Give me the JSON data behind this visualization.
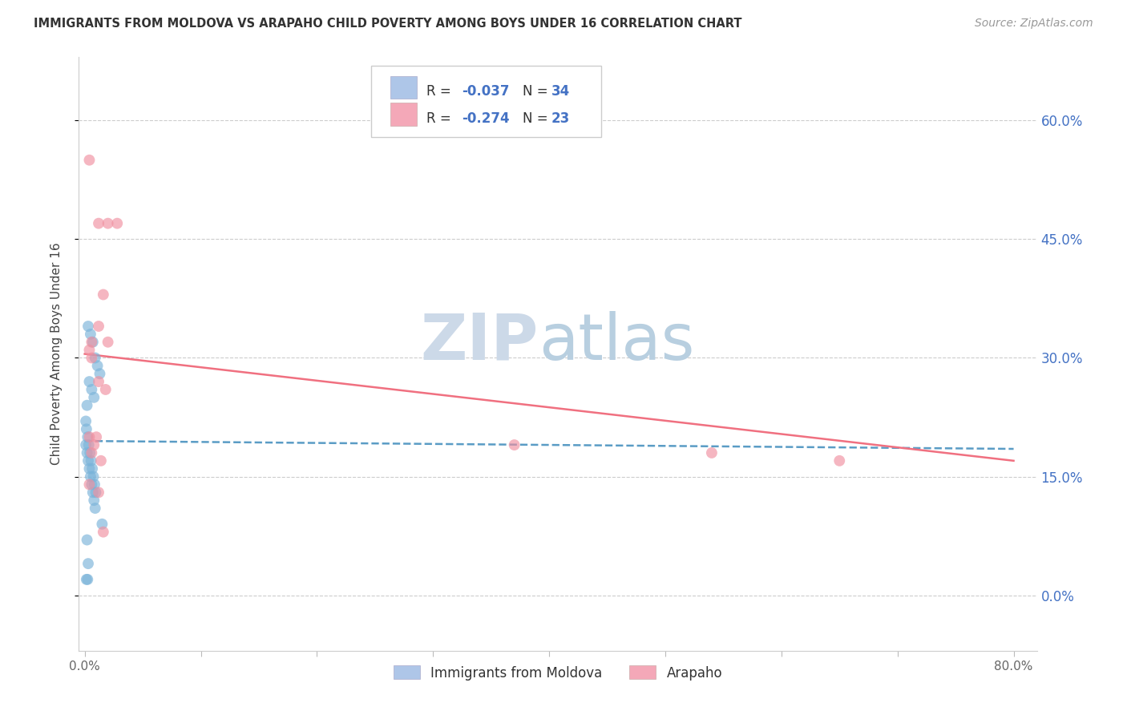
{
  "title": "IMMIGRANTS FROM MOLDOVA VS ARAPAHO CHILD POVERTY AMONG BOYS UNDER 16 CORRELATION CHART",
  "source": "Source: ZipAtlas.com",
  "ylabel": "Child Poverty Among Boys Under 16",
  "ytick_values": [
    0,
    15,
    30,
    45,
    60
  ],
  "ytick_labels": [
    "0.0%",
    "15.0%",
    "30.0%",
    "45.0%",
    "60.0%"
  ],
  "xlim": [
    0,
    80
  ],
  "ylim": [
    -7,
    68
  ],
  "moldova_color": "#7ab3d9",
  "arapaho_color": "#f090a0",
  "moldova_line_color": "#5a9cc5",
  "arapaho_line_color": "#f07080",
  "legend_box_color": "#aec6e8",
  "legend_pink_color": "#f4a8b8",
  "scatter_alpha": 0.65,
  "scatter_size": 100,
  "watermark_zip_color": "#ccd9e8",
  "watermark_atlas_color": "#b8cfe0",
  "moldova_scatter_x": [
    0.3,
    0.5,
    0.7,
    0.9,
    1.1,
    1.3,
    0.4,
    0.6,
    0.8,
    0.2,
    0.1,
    0.15,
    0.25,
    0.35,
    0.45,
    0.55,
    0.65,
    0.75,
    0.85,
    0.95,
    0.1,
    0.2,
    0.3,
    0.4,
    0.5,
    0.6,
    0.7,
    0.8,
    0.9,
    1.5,
    0.2,
    0.3,
    0.15,
    0.25
  ],
  "moldova_scatter_y": [
    34,
    33,
    32,
    30,
    29,
    28,
    27,
    26,
    25,
    24,
    22,
    21,
    20,
    19,
    18,
    17,
    16,
    15,
    14,
    13,
    19,
    18,
    17,
    16,
    15,
    14,
    13,
    12,
    11,
    9,
    7,
    4,
    2,
    2
  ],
  "arapaho_scatter_x": [
    0.4,
    1.2,
    2.0,
    2.8,
    1.6,
    1.2,
    2.0,
    1.2,
    0.6,
    0.4,
    0.6,
    1.8,
    0.4,
    0.8,
    1.0,
    37,
    54,
    65,
    0.4,
    1.2,
    1.6,
    0.6,
    1.4
  ],
  "arapaho_scatter_y": [
    55,
    47,
    47,
    47,
    38,
    34,
    32,
    27,
    32,
    31,
    30,
    26,
    20,
    19,
    20,
    19,
    18,
    17,
    14,
    13,
    8,
    18,
    17
  ],
  "moldova_line_x0": 0,
  "moldova_line_y0": 19.5,
  "moldova_line_x1": 80,
  "moldova_line_y1": 18.5,
  "arapaho_line_x0": 0,
  "arapaho_line_y0": 30.5,
  "arapaho_line_x1": 80,
  "arapaho_line_y1": 17.0
}
